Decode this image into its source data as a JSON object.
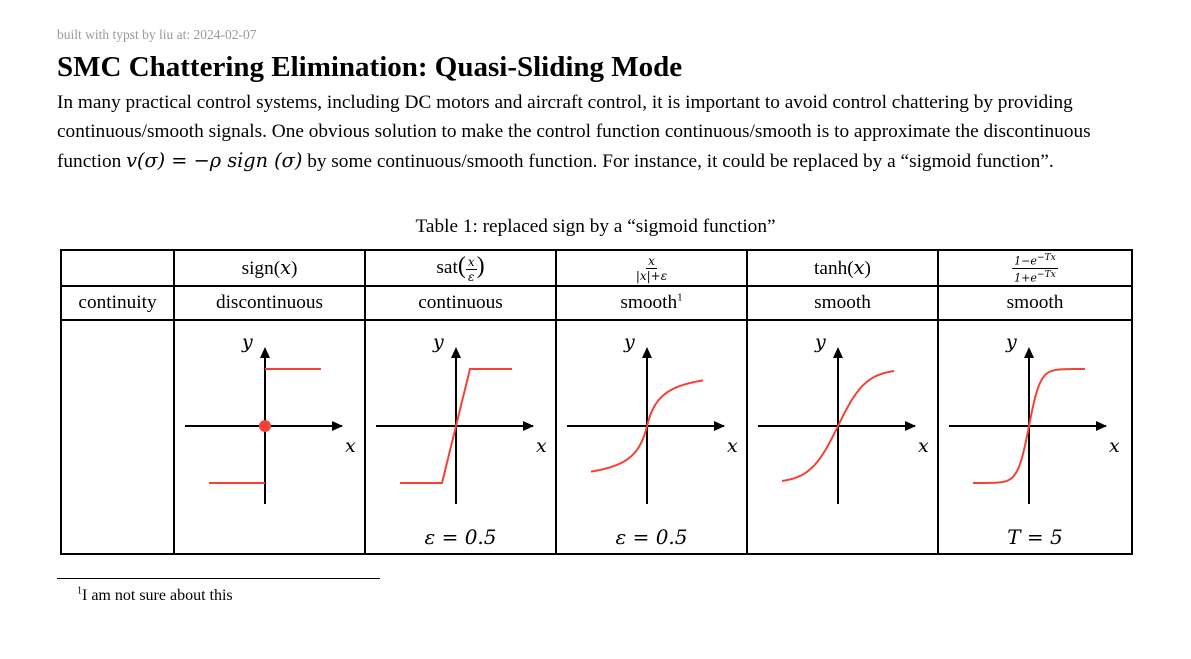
{
  "meta": "built with typst by liu at: 2024-02-07",
  "title": "SMC Chattering Elimination: Quasi-Sliding Mode",
  "paragraph": {
    "part1": "In many practical control systems, including DC motors and aircraft control, it is important to avoid control chattering by providing continuous/smooth signals. One obvious solution to make the control function continuous/smooth is to approximate the discontinuous function ",
    "formula": "v(σ) = −ρ sign (σ)",
    "part2": " by some continuous/smooth function. For instance, it could be replaced by a “sigmoid function”."
  },
  "caption": "Table 1: replaced sign by a “sigmoid function”",
  "table": {
    "headers": [
      "sign(x)",
      "sat(x/ε)",
      "x/(|x|+ε)",
      "tanh(x)",
      "(1−e^{−Tx})/(1+e^{−Tx})"
    ],
    "row_label": "continuity",
    "continuity": [
      "discontinuous",
      "continuous",
      "smooth",
      "smooth",
      "smooth"
    ],
    "footnote_mark": "1",
    "axis_x": "x",
    "axis_y": "y",
    "params": [
      "",
      "ε = 0.5",
      "ε = 0.5",
      "",
      "T = 5"
    ]
  },
  "colors": {
    "curve": "#f44336",
    "axis": "#000000",
    "meta": "#999999"
  },
  "footnote": {
    "mark": "1",
    "text": "I am not sure about this"
  }
}
